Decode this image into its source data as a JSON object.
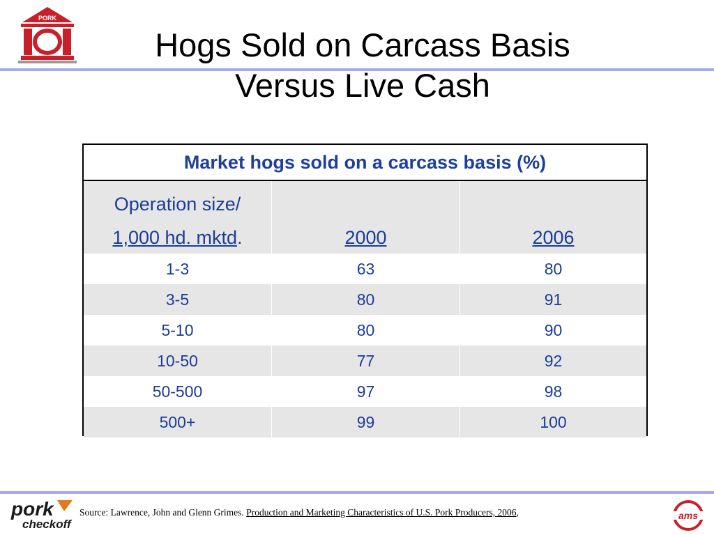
{
  "title": {
    "line1": "Hogs Sold on Carcass Basis",
    "line2": "Versus Live Cash"
  },
  "logos": {
    "top_left_text": "PORK",
    "bottom_left_text1": "pork",
    "bottom_left_text2": "checkoff",
    "bottom_right_text": "ams"
  },
  "table": {
    "caption": "Market hogs sold on a carcass basis (%)",
    "header": {
      "col1_line1": "Operation size/",
      "col1_line2": "1,000 hd. mktd",
      "col1_line2_suffix": ".",
      "col2": "2000",
      "col3": "2006"
    },
    "rows": [
      {
        "size": "1-3",
        "y2000": "63",
        "y2006": "80"
      },
      {
        "size": "3-5",
        "y2000": "80",
        "y2006": "91"
      },
      {
        "size": "5-10",
        "y2000": "80",
        "y2006": "90"
      },
      {
        "size": "10-50",
        "y2000": "77",
        "y2006": "92"
      },
      {
        "size": "50-500",
        "y2000": "97",
        "y2006": "98"
      },
      {
        "size": "500+",
        "y2000": "99",
        "y2006": "100"
      }
    ]
  },
  "footer": {
    "source_prefix": "Source: Lawrence, John and Glenn Grimes.  ",
    "source_publication": "Production and Marketing Characteristics of U.S. Pork Producers, 2006",
    "source_suffix": ","
  }
}
